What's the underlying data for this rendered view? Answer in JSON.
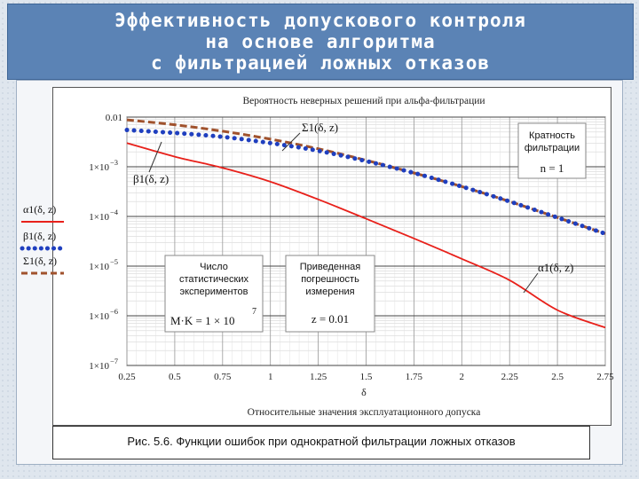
{
  "slide": {
    "title_lines": [
      "Эффективность допускового контроля",
      "на основе алгоритма",
      "с фильтрацией ложных отказов"
    ],
    "caption": "Рис. 5.6. Функции ошибок при однократной фильтрации ложных отказов"
  },
  "chart_data": {
    "type": "line",
    "title": "Вероятность неверных решений при альфа-фильтрации",
    "xlabel": "δ",
    "subtitle_below": "Относительные значения эксплуатационного допуска",
    "x_range": [
      0.25,
      2.75
    ],
    "y_scale": "log",
    "y_range": [
      1e-07,
      0.01
    ],
    "grid": true,
    "x_ticks": [
      "0.25",
      "0.5",
      "0.75",
      "1",
      "1.25",
      "1.5",
      "1.75",
      "2",
      "2.25",
      "2.5",
      "2.75"
    ],
    "y_ticks": [
      {
        "value": 0.01,
        "label": "0.01",
        "exp": ""
      },
      {
        "value": 0.001,
        "label": "1×10",
        "exp": "−3"
      },
      {
        "value": 0.0001,
        "label": "1×10",
        "exp": "−4"
      },
      {
        "value": 1e-05,
        "label": "1×10",
        "exp": "−5"
      },
      {
        "value": 1e-06,
        "label": "1×10",
        "exp": "−6"
      },
      {
        "value": 1e-07,
        "label": "1×10",
        "exp": "−7"
      }
    ],
    "series": [
      {
        "name": "Σ1(δ, z)",
        "style": "dashed",
        "color": "#a0522d",
        "x": [
          0.25,
          0.5,
          0.75,
          1,
          1.25,
          1.5,
          1.75,
          2,
          2.25,
          2.5,
          2.75
        ],
        "y": [
          0.0088,
          0.007,
          0.0052,
          0.0036,
          0.0023,
          0.00135,
          0.00075,
          0.0004,
          0.0002,
          9.5e-05,
          4.5e-05
        ]
      },
      {
        "name": "β1(δ, z)",
        "style": "dotted",
        "color": "#1f3fbf",
        "x": [
          0.25,
          0.5,
          0.75,
          1,
          1.25,
          1.5,
          1.75,
          2,
          2.25,
          2.5,
          2.75
        ],
        "y": [
          0.0055,
          0.0048,
          0.004,
          0.003,
          0.0021,
          0.0013,
          0.00075,
          0.0004,
          0.0002,
          9.5e-05,
          4.5e-05
        ]
      },
      {
        "name": "α1(δ, z)",
        "style": "solid",
        "color": "#e8201a",
        "x": [
          0.25,
          0.5,
          0.75,
          1,
          1.25,
          1.5,
          1.75,
          2,
          2.25,
          2.5,
          2.75
        ],
        "y": [
          0.003,
          0.0016,
          0.00095,
          0.0005,
          0.00022,
          9e-05,
          3.6e-05,
          1.4e-05,
          5.2e-06,
          1.3e-06,
          5.8e-07
        ]
      }
    ],
    "annotations": {
      "multiplicity_lines": [
        "Кратность",
        "фильтрации"
      ],
      "n_label": "n = 1",
      "experiments_lines": [
        "Число",
        "статистических",
        "экспериментов"
      ],
      "mk_label": "M·K = 1 × 10",
      "mk_exp": "7",
      "error_lines": [
        "Приведенная",
        "погрешность",
        "измерения"
      ],
      "z_label": "z = 0.01",
      "sigma_curve_label": "Σ1(δ, z)",
      "beta_curve_label": "β1(δ, z)",
      "alpha_curve_label": "α1(δ, z)"
    },
    "legend": {
      "placement": "left",
      "labels": [
        "α1(δ, z)",
        "β1(δ, z)",
        "Σ1(δ, z)"
      ]
    }
  }
}
